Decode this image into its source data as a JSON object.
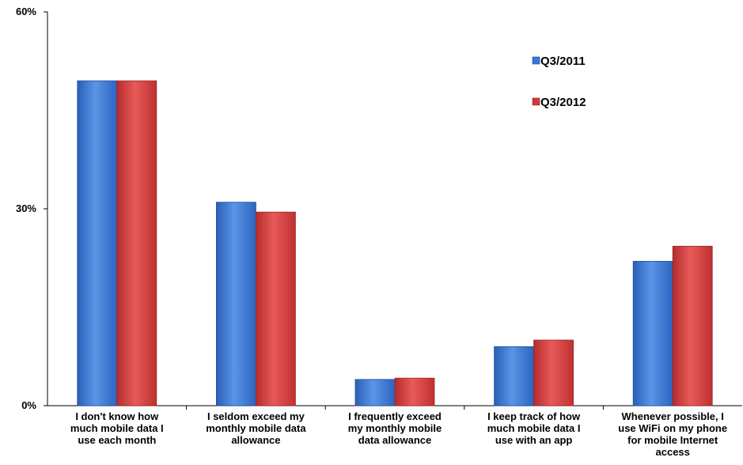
{
  "chart_data": {
    "type": "bar",
    "title": "",
    "xlabel": "",
    "ylabel": "",
    "ylim": [
      0,
      60
    ],
    "yticks": [
      0,
      30,
      60
    ],
    "ytick_labels": [
      "0%",
      "30%",
      "60%"
    ],
    "categories": [
      [
        "I don't know how",
        "much mobile data I",
        "use each month"
      ],
      [
        "I seldom exceed my",
        "monthly mobile data",
        "allowance"
      ],
      [
        "I frequently exceed",
        "my monthly mobile",
        "data allowance"
      ],
      [
        "I keep track of how",
        "much mobile data I",
        "use with an app"
      ],
      [
        "Whenever possible, I",
        "use WiFi on my phone",
        "for mobile Internet",
        "access"
      ]
    ],
    "series": [
      {
        "name": "Q3/2011",
        "color": "#3b78d8",
        "values": [
          49.5,
          31,
          4,
          9,
          22
        ]
      },
      {
        "name": "Q3/2012",
        "color": "#d13b3b",
        "values": [
          49.5,
          29.5,
          4.2,
          10,
          24.3
        ]
      }
    ],
    "grid": false,
    "legend_position": "top-right"
  }
}
